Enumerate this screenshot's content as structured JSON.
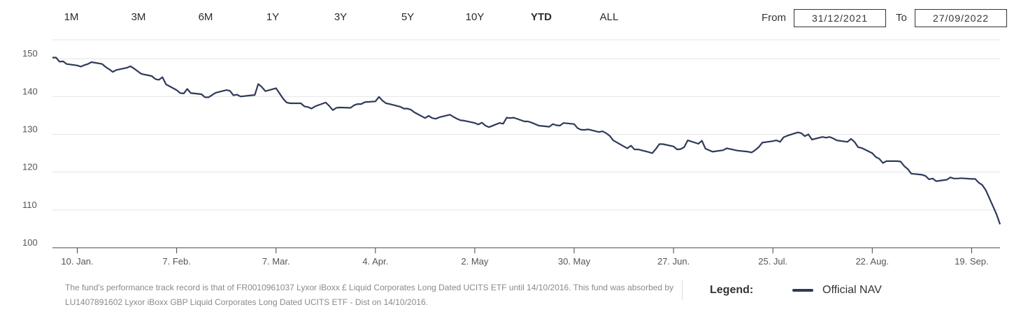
{
  "range_buttons": [
    {
      "label": "1M",
      "active": false
    },
    {
      "label": "3M",
      "active": false
    },
    {
      "label": "6M",
      "active": false
    },
    {
      "label": "1Y",
      "active": false
    },
    {
      "label": "3Y",
      "active": false
    },
    {
      "label": "5Y",
      "active": false
    },
    {
      "label": "10Y",
      "active": false
    },
    {
      "label": "YTD",
      "active": true
    },
    {
      "label": "ALL",
      "active": false
    }
  ],
  "date_range": {
    "from_label": "From",
    "from_value": "31/12/2021",
    "to_label": "To",
    "to_value": "27/09/2022"
  },
  "note": "The fund's performance track record is that of FR0010961037 Lyxor iBoxx £ Liquid Corporates Long Dated UCITS ETF until 14/10/2016. This fund was absorbed by LU1407891602 Lyxor iBoxx GBP Liquid Corporates Long Dated UCITS ETF - Dist on 14/10/2016.",
  "legend": {
    "title": "Legend:",
    "label": "Official NAV",
    "color": "#2e3a59"
  },
  "colors": {
    "line": "#2e3a59",
    "grid": "#e3e3e3",
    "axis": "#555555"
  },
  "chart_data": {
    "type": "line",
    "title": "",
    "xlabel": "",
    "ylabel": "",
    "grid": true,
    "ylim": [
      100,
      155
    ],
    "yticks": [
      100,
      110,
      120,
      130,
      140,
      150
    ],
    "xlim": [
      "2022-01-03",
      "2022-09-27"
    ],
    "xticks": [
      {
        "date": "2022-01-10",
        "label": "10. Jan."
      },
      {
        "date": "2022-02-07",
        "label": "7. Feb."
      },
      {
        "date": "2022-03-07",
        "label": "7. Mar."
      },
      {
        "date": "2022-04-04",
        "label": "4. Apr."
      },
      {
        "date": "2022-05-02",
        "label": "2. May"
      },
      {
        "date": "2022-05-30",
        "label": "30. May"
      },
      {
        "date": "2022-06-27",
        "label": "27. Jun."
      },
      {
        "date": "2022-07-25",
        "label": "25. Jul."
      },
      {
        "date": "2022-08-22",
        "label": "22. Aug."
      },
      {
        "date": "2022-09-19",
        "label": "19. Sep."
      }
    ],
    "series": [
      {
        "name": "Official NAV",
        "points": [
          [
            "2022-01-03",
            150.3
          ],
          [
            "2022-01-04",
            150.3
          ],
          [
            "2022-01-05",
            149.2
          ],
          [
            "2022-01-06",
            149.3
          ],
          [
            "2022-01-07",
            148.6
          ],
          [
            "2022-01-10",
            148.2
          ],
          [
            "2022-01-11",
            147.9
          ],
          [
            "2022-01-12",
            148.3
          ],
          [
            "2022-01-13",
            148.6
          ],
          [
            "2022-01-14",
            149.1
          ],
          [
            "2022-01-17",
            148.6
          ],
          [
            "2022-01-18",
            147.8
          ],
          [
            "2022-01-19",
            147.2
          ],
          [
            "2022-01-20",
            146.5
          ],
          [
            "2022-01-21",
            147.0
          ],
          [
            "2022-01-24",
            147.6
          ],
          [
            "2022-01-25",
            148.0
          ],
          [
            "2022-01-26",
            147.4
          ],
          [
            "2022-01-27",
            146.7
          ],
          [
            "2022-01-28",
            146.0
          ],
          [
            "2022-01-31",
            145.4
          ],
          [
            "2022-02-01",
            144.6
          ],
          [
            "2022-02-02",
            144.4
          ],
          [
            "2022-02-03",
            145.1
          ],
          [
            "2022-02-04",
            143.2
          ],
          [
            "2022-02-07",
            141.7
          ],
          [
            "2022-02-08",
            140.9
          ],
          [
            "2022-02-09",
            140.8
          ],
          [
            "2022-02-10",
            142.0
          ],
          [
            "2022-02-11",
            140.9
          ],
          [
            "2022-02-14",
            140.6
          ],
          [
            "2022-02-15",
            139.8
          ],
          [
            "2022-02-16",
            139.8
          ],
          [
            "2022-02-17",
            140.4
          ],
          [
            "2022-02-18",
            141.0
          ],
          [
            "2022-02-21",
            141.7
          ],
          [
            "2022-02-22",
            141.5
          ],
          [
            "2022-02-23",
            140.3
          ],
          [
            "2022-02-24",
            140.5
          ],
          [
            "2022-02-25",
            140.0
          ],
          [
            "2022-02-28",
            140.3
          ],
          [
            "2022-03-01",
            140.4
          ],
          [
            "2022-03-02",
            143.3
          ],
          [
            "2022-03-03",
            142.5
          ],
          [
            "2022-03-04",
            141.4
          ],
          [
            "2022-03-07",
            142.2
          ],
          [
            "2022-03-08",
            140.8
          ],
          [
            "2022-03-09",
            139.4
          ],
          [
            "2022-03-10",
            138.4
          ],
          [
            "2022-03-11",
            138.2
          ],
          [
            "2022-03-14",
            138.2
          ],
          [
            "2022-03-15",
            137.4
          ],
          [
            "2022-03-16",
            137.2
          ],
          [
            "2022-03-17",
            136.8
          ],
          [
            "2022-03-18",
            137.4
          ],
          [
            "2022-03-21",
            138.4
          ],
          [
            "2022-03-22",
            137.5
          ],
          [
            "2022-03-23",
            136.4
          ],
          [
            "2022-03-24",
            137.0
          ],
          [
            "2022-03-25",
            137.1
          ],
          [
            "2022-03-28",
            137.0
          ],
          [
            "2022-03-29",
            137.7
          ],
          [
            "2022-03-30",
            138.0
          ],
          [
            "2022-03-31",
            138.0
          ],
          [
            "2022-04-01",
            138.5
          ],
          [
            "2022-04-04",
            138.7
          ],
          [
            "2022-04-05",
            139.9
          ],
          [
            "2022-04-06",
            138.9
          ],
          [
            "2022-04-07",
            138.2
          ],
          [
            "2022-04-08",
            138.0
          ],
          [
            "2022-04-11",
            137.3
          ],
          [
            "2022-04-12",
            136.8
          ],
          [
            "2022-04-13",
            136.8
          ],
          [
            "2022-04-14",
            136.5
          ],
          [
            "2022-04-15",
            135.8
          ],
          [
            "2022-04-18",
            134.3
          ],
          [
            "2022-04-19",
            134.9
          ],
          [
            "2022-04-20",
            134.3
          ],
          [
            "2022-04-21",
            134.1
          ],
          [
            "2022-04-22",
            134.5
          ],
          [
            "2022-04-25",
            135.2
          ],
          [
            "2022-04-26",
            134.6
          ],
          [
            "2022-04-27",
            134.1
          ],
          [
            "2022-04-28",
            133.7
          ],
          [
            "2022-04-29",
            133.6
          ],
          [
            "2022-05-02",
            133.0
          ],
          [
            "2022-05-03",
            132.6
          ],
          [
            "2022-05-04",
            133.1
          ],
          [
            "2022-05-05",
            132.3
          ],
          [
            "2022-05-06",
            131.9
          ],
          [
            "2022-05-09",
            133.0
          ],
          [
            "2022-05-10",
            132.8
          ],
          [
            "2022-05-11",
            134.4
          ],
          [
            "2022-05-12",
            134.3
          ],
          [
            "2022-05-13",
            134.4
          ],
          [
            "2022-05-16",
            133.4
          ],
          [
            "2022-05-17",
            133.4
          ],
          [
            "2022-05-18",
            133.1
          ],
          [
            "2022-05-19",
            132.7
          ],
          [
            "2022-05-20",
            132.3
          ],
          [
            "2022-05-23",
            132.0
          ],
          [
            "2022-05-24",
            132.7
          ],
          [
            "2022-05-25",
            132.4
          ],
          [
            "2022-05-26",
            132.3
          ],
          [
            "2022-05-27",
            133.0
          ],
          [
            "2022-05-30",
            132.7
          ],
          [
            "2022-05-31",
            131.6
          ],
          [
            "2022-06-01",
            131.2
          ],
          [
            "2022-06-02",
            131.2
          ],
          [
            "2022-06-03",
            131.3
          ],
          [
            "2022-06-06",
            130.6
          ],
          [
            "2022-06-07",
            130.8
          ],
          [
            "2022-06-08",
            130.3
          ],
          [
            "2022-06-09",
            129.6
          ],
          [
            "2022-06-10",
            128.4
          ],
          [
            "2022-06-13",
            126.8
          ],
          [
            "2022-06-14",
            126.3
          ],
          [
            "2022-06-15",
            127.0
          ],
          [
            "2022-06-16",
            126.0
          ],
          [
            "2022-06-17",
            126.0
          ],
          [
            "2022-06-20",
            125.3
          ],
          [
            "2022-06-21",
            125.0
          ],
          [
            "2022-06-22",
            126.1
          ],
          [
            "2022-06-23",
            127.4
          ],
          [
            "2022-06-24",
            127.4
          ],
          [
            "2022-06-27",
            126.8
          ],
          [
            "2022-06-28",
            126.0
          ],
          [
            "2022-06-29",
            126.1
          ],
          [
            "2022-06-30",
            126.6
          ],
          [
            "2022-07-01",
            128.4
          ],
          [
            "2022-07-04",
            127.5
          ],
          [
            "2022-07-05",
            128.3
          ],
          [
            "2022-07-06",
            126.2
          ],
          [
            "2022-07-07",
            125.8
          ],
          [
            "2022-07-08",
            125.4
          ],
          [
            "2022-07-11",
            125.8
          ],
          [
            "2022-07-12",
            126.3
          ],
          [
            "2022-07-13",
            126.1
          ],
          [
            "2022-07-14",
            125.9
          ],
          [
            "2022-07-15",
            125.7
          ],
          [
            "2022-07-18",
            125.4
          ],
          [
            "2022-07-19",
            125.2
          ],
          [
            "2022-07-20",
            125.8
          ],
          [
            "2022-07-21",
            126.6
          ],
          [
            "2022-07-22",
            127.8
          ],
          [
            "2022-07-25",
            128.2
          ],
          [
            "2022-07-26",
            128.4
          ],
          [
            "2022-07-27",
            128.0
          ],
          [
            "2022-07-28",
            129.2
          ],
          [
            "2022-07-29",
            129.6
          ],
          [
            "2022-08-01",
            130.5
          ],
          [
            "2022-08-02",
            130.3
          ],
          [
            "2022-08-03",
            129.5
          ],
          [
            "2022-08-04",
            130.0
          ],
          [
            "2022-08-05",
            128.6
          ],
          [
            "2022-08-08",
            129.3
          ],
          [
            "2022-08-09",
            129.1
          ],
          [
            "2022-08-10",
            129.3
          ],
          [
            "2022-08-11",
            128.9
          ],
          [
            "2022-08-12",
            128.4
          ],
          [
            "2022-08-15",
            128.0
          ],
          [
            "2022-08-16",
            128.8
          ],
          [
            "2022-08-17",
            128.0
          ],
          [
            "2022-08-18",
            126.6
          ],
          [
            "2022-08-19",
            126.4
          ],
          [
            "2022-08-22",
            125.0
          ],
          [
            "2022-08-23",
            124.0
          ],
          [
            "2022-08-24",
            123.5
          ],
          [
            "2022-08-25",
            122.4
          ],
          [
            "2022-08-26",
            122.9
          ],
          [
            "2022-08-29",
            122.9
          ],
          [
            "2022-08-30",
            122.8
          ],
          [
            "2022-08-31",
            121.6
          ],
          [
            "2022-09-01",
            120.8
          ],
          [
            "2022-09-02",
            119.6
          ],
          [
            "2022-09-05",
            119.3
          ],
          [
            "2022-09-06",
            119.0
          ],
          [
            "2022-09-07",
            118.1
          ],
          [
            "2022-09-08",
            118.3
          ],
          [
            "2022-09-09",
            117.6
          ],
          [
            "2022-09-12",
            118.0
          ],
          [
            "2022-09-13",
            118.6
          ],
          [
            "2022-09-14",
            118.3
          ],
          [
            "2022-09-15",
            118.3
          ],
          [
            "2022-09-16",
            118.4
          ],
          [
            "2022-09-19",
            118.2
          ],
          [
            "2022-09-20",
            118.2
          ],
          [
            "2022-09-21",
            117.2
          ],
          [
            "2022-09-22",
            116.6
          ],
          [
            "2022-09-23",
            115.2
          ],
          [
            "2022-09-26",
            108.9
          ],
          [
            "2022-09-27",
            106.2
          ]
        ]
      }
    ]
  }
}
